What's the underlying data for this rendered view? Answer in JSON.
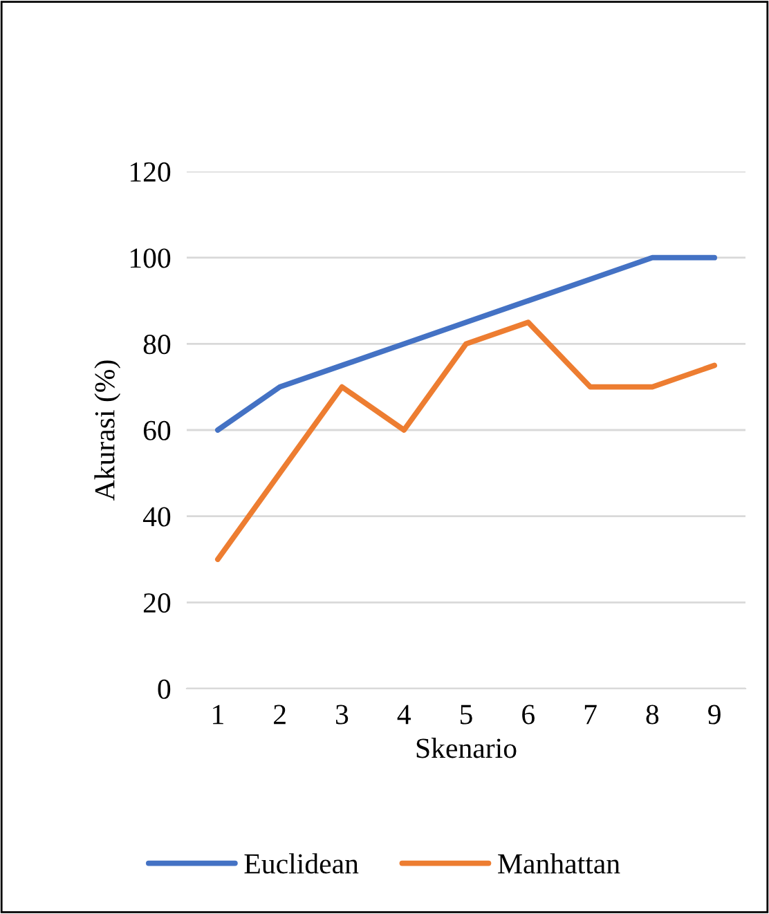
{
  "chart_data": {
    "type": "line",
    "xlabel": "Skenario",
    "ylabel": "Akurasi (%)",
    "categories": [
      "1",
      "2",
      "3",
      "4",
      "5",
      "6",
      "7",
      "8",
      "9"
    ],
    "series": [
      {
        "name": "Euclidean",
        "color": "#4472c4",
        "values": [
          60,
          70,
          75,
          80,
          85,
          90,
          95,
          100,
          100
        ]
      },
      {
        "name": "Manhattan",
        "color": "#ed7d31",
        "values": [
          30,
          50,
          70,
          60,
          80,
          85,
          70,
          70,
          75
        ]
      }
    ],
    "ylim": [
      0,
      120
    ],
    "yticks": [
      0,
      20,
      40,
      60,
      80,
      100,
      120
    ],
    "grid": "y",
    "legend": "bottom",
    "marker": "none",
    "line_style": "solid"
  }
}
